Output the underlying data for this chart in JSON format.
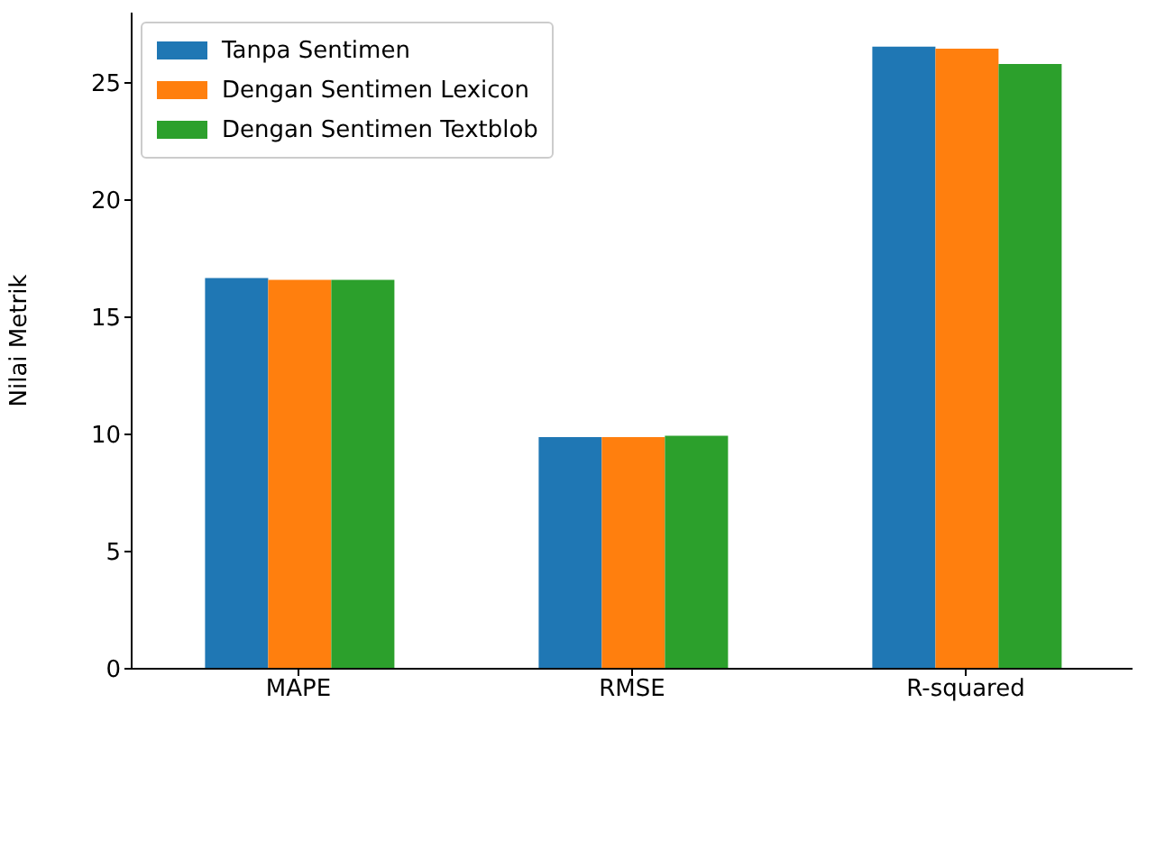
{
  "chart_data": {
    "type": "bar",
    "ylabel": "Nilai Metrik",
    "categories": [
      "MAPE",
      "RMSE",
      "R-squared"
    ],
    "series": [
      {
        "name": "Tanpa Sentimen",
        "color": "#1f77b4",
        "values": [
          16.67,
          9.88,
          26.55
        ]
      },
      {
        "name": "Dengan Sentimen Lexicon",
        "color": "#ff7f0e",
        "values": [
          16.6,
          9.88,
          26.46
        ]
      },
      {
        "name": "Dengan Sentimen Textblob",
        "color": "#2ca02c",
        "values": [
          16.6,
          9.94,
          25.81
        ]
      }
    ],
    "ylim": [
      0,
      28
    ],
    "yticks": [
      0,
      5,
      10,
      15,
      20,
      25
    ],
    "grid": false,
    "legend": "top left"
  }
}
